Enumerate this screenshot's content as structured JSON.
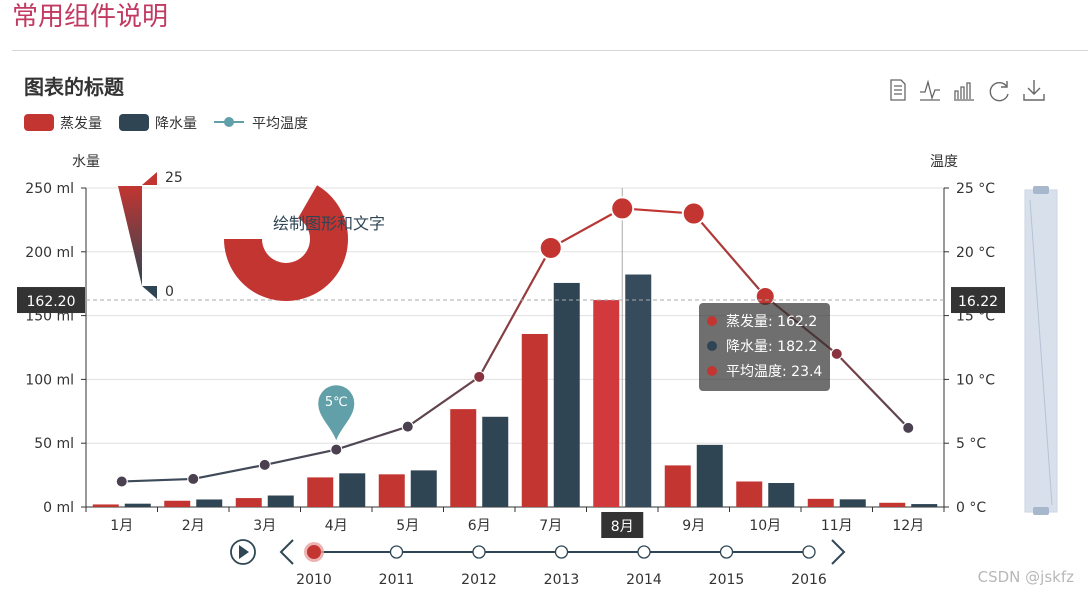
{
  "page": {
    "title": "常用组件说明",
    "watermark": "CSDN @jskfz"
  },
  "toolbox": {
    "icons": [
      "data-view-icon",
      "line-chart-icon",
      "bar-chart-icon",
      "restore-icon",
      "download-icon"
    ]
  },
  "colors": {
    "evaporation": "#c23531",
    "precipitation": "#2f4554",
    "temperature": "#c23531",
    "line_stroke": "#7a3a45",
    "pin": "#61a0a8",
    "grid": "#e0e0e0",
    "axis_text": "#333333"
  },
  "chart_data": {
    "type": "bar",
    "title": "图表的标题",
    "categories": [
      "1月",
      "2月",
      "3月",
      "4月",
      "5月",
      "6月",
      "7月",
      "8月",
      "9月",
      "10月",
      "11月",
      "12月"
    ],
    "legend": [
      "蒸发量",
      "降水量",
      "平均温度"
    ],
    "series": [
      {
        "name": "蒸发量",
        "type": "bar",
        "values": [
          2.0,
          4.9,
          7.0,
          23.2,
          25.6,
          76.7,
          135.6,
          162.2,
          32.6,
          20.0,
          6.4,
          3.3
        ]
      },
      {
        "name": "降水量",
        "type": "bar",
        "values": [
          2.6,
          5.9,
          9.0,
          26.4,
          28.7,
          70.7,
          175.6,
          182.2,
          48.7,
          18.8,
          6.0,
          2.3
        ]
      },
      {
        "name": "平均温度",
        "type": "line",
        "values": [
          2.0,
          2.2,
          3.3,
          4.5,
          6.3,
          10.2,
          20.3,
          23.4,
          23.0,
          16.5,
          12.0,
          6.2
        ]
      }
    ],
    "y_left": {
      "name": "水量",
      "min": 0,
      "max": 250,
      "ticks": [
        0,
        50,
        100,
        150,
        200,
        250
      ],
      "tick_labels": [
        "0 ml",
        "50 ml",
        "100 ml",
        "150 ml",
        "200 ml",
        "250 ml"
      ]
    },
    "y_right": {
      "name": "温度",
      "min": 0,
      "max": 25,
      "ticks": [
        0,
        5,
        10,
        15,
        20,
        25
      ],
      "tick_labels": [
        "0 °C",
        "5 °C",
        "10 °C",
        "15 °C",
        "20 °C",
        "25 °C"
      ]
    },
    "mark_point": {
      "category": "4月",
      "value": 5,
      "label": "5℃"
    },
    "visual_map": {
      "max_label": "25",
      "min_label": "0"
    },
    "graphic_text": "绘制图形和文字",
    "axis_pointer": {
      "category": "8月",
      "left_value": 162.2,
      "left_label": "162.20",
      "right_value": 16.22,
      "right_label": "16.22",
      "tooltip": [
        {
          "name": "蒸发量",
          "value": "162.2"
        },
        {
          "name": "降水量",
          "value": "182.2"
        },
        {
          "name": "平均温度",
          "value": "23.4"
        }
      ]
    },
    "timeline": {
      "years": [
        "2010",
        "2011",
        "2012",
        "2013",
        "2014",
        "2015",
        "2016"
      ],
      "current": "2010"
    },
    "data_zoom": {
      "start_percent": 0,
      "end_percent": 100
    }
  }
}
